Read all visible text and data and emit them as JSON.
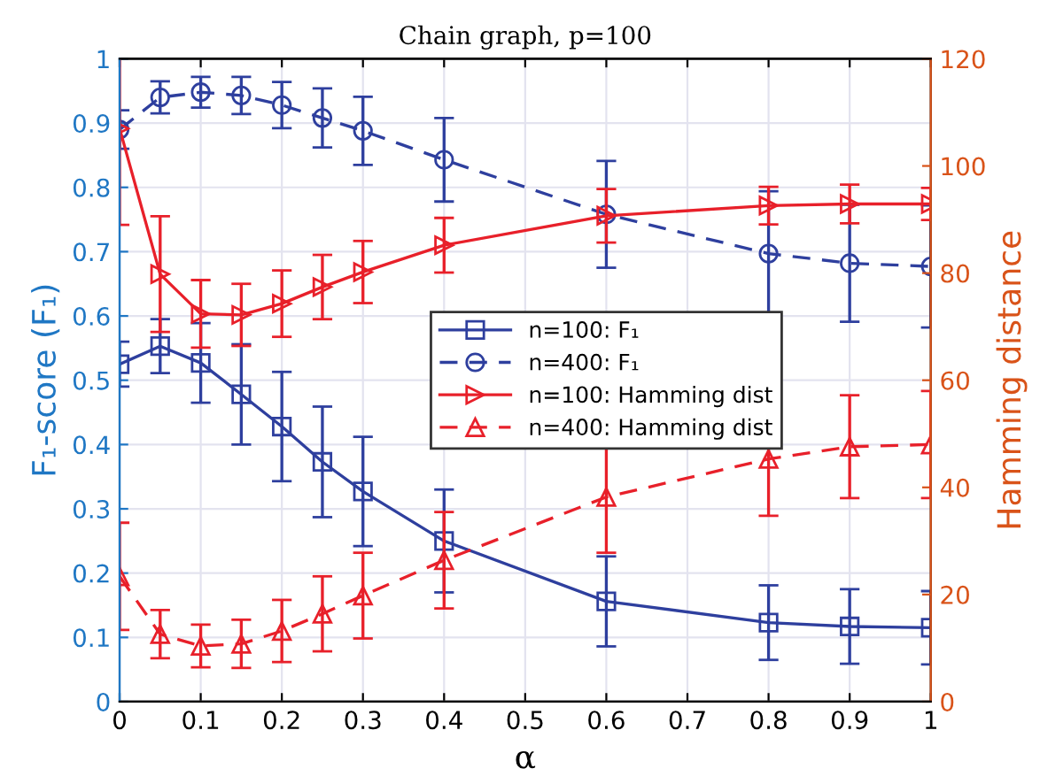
{
  "chart_data": {
    "type": "line",
    "title": "Chain graph, p=100",
    "xlabel": "α",
    "ylabel": "F₁-score (F₁)",
    "y2label": "Hamming distance",
    "x": [
      0,
      0.05,
      0.1,
      0.15,
      0.2,
      0.25,
      0.3,
      0.4,
      0.6,
      0.8,
      0.9,
      1
    ],
    "xlim": [
      0,
      1
    ],
    "xticks": [
      0,
      0.1,
      0.2,
      0.3,
      0.4,
      0.5,
      0.6,
      0.7,
      0.8,
      0.9,
      1
    ],
    "ylim": [
      0,
      1
    ],
    "yticks": [
      0,
      0.1,
      0.2,
      0.3,
      0.4,
      0.5,
      0.6,
      0.7,
      0.8,
      0.9,
      1
    ],
    "y2lim": [
      0,
      120
    ],
    "y2ticks": [
      0,
      20,
      40,
      60,
      80,
      100,
      120
    ],
    "grid": true,
    "legend": "center",
    "series": [
      {
        "name": "n=100: F₁",
        "color": "#2e3f9e",
        "marker": "square",
        "line_style": "solid",
        "values": [
          0.525,
          0.553,
          0.527,
          0.478,
          0.428,
          0.373,
          0.327,
          0.25,
          0.156,
          0.123,
          0.117,
          0.115
        ],
        "errors": [
          0.035,
          0.042,
          0.062,
          0.078,
          0.085,
          0.086,
          0.085,
          0.08,
          0.07,
          0.058,
          0.058,
          0.057
        ]
      },
      {
        "name": "n=400: F₁",
        "color": "#2e3f9e",
        "marker": "circle",
        "line_style": "dashed",
        "values": [
          0.89,
          0.94,
          0.948,
          0.943,
          0.928,
          0.908,
          0.888,
          0.843,
          0.758,
          0.697,
          0.682,
          0.677
        ],
        "errors": [
          0.03,
          0.025,
          0.024,
          0.029,
          0.036,
          0.046,
          0.053,
          0.065,
          0.083,
          0.097,
          0.091,
          0.095
        ]
      },
      {
        "name": "n=100: Hamming dist",
        "color": "#e8202a",
        "marker": "triangle_right",
        "line_style": "solid",
        "axis": "y2",
        "values": [
          107,
          79.8,
          72.4,
          72.2,
          74.3,
          77.4,
          80.2,
          85.2,
          90.7,
          92.6,
          92.9,
          92.9
        ],
        "errors": [
          18,
          10.8,
          6.3,
          5.8,
          6.2,
          6,
          5.8,
          5.1,
          5,
          3.5,
          3.6,
          3
        ]
      },
      {
        "name": "n=400: Hamming dist",
        "color": "#e8202a",
        "marker": "triangle",
        "line_style": "dashed",
        "axis": "y2",
        "values": [
          23.4,
          12.6,
          10.4,
          10.8,
          13.2,
          16.4,
          19.8,
          26.4,
          38.2,
          45.3,
          47.6,
          48
        ],
        "errors": [
          10,
          4.5,
          4,
          4.5,
          5.8,
          7,
          8,
          9,
          10.4,
          10.6,
          9.6,
          10
        ]
      }
    ]
  }
}
